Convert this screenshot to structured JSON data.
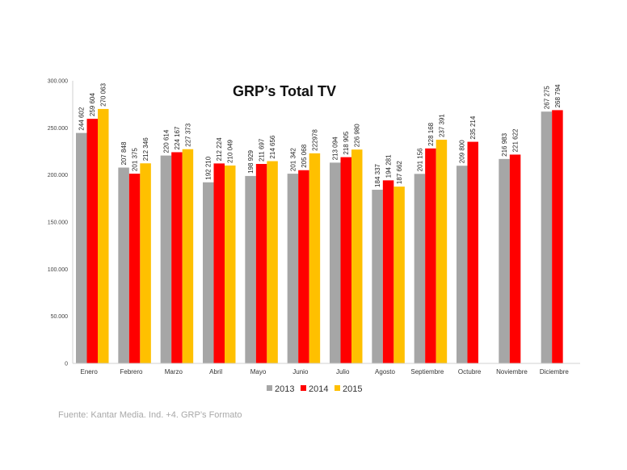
{
  "chart_data": {
    "type": "bar",
    "title": "GRP’s Total TV",
    "xlabel": "",
    "ylabel": "",
    "ylim": [
      0,
      300000
    ],
    "yticks": [
      0,
      50000,
      100000,
      150000,
      200000,
      250000,
      300000
    ],
    "ytick_labels": [
      "0",
      "50.000",
      "100.000",
      "150.000",
      "200.000",
      "250.000",
      "300.000"
    ],
    "grid": false,
    "legend_position": "bottom-center",
    "categories": [
      "Enero",
      "Febrero",
      "Marzo",
      "Abril",
      "Mayo",
      "Junio",
      "Julio",
      "Agosto",
      "Septiembre",
      "Octubre",
      "Noviembre",
      "Diciembre"
    ],
    "series": [
      {
        "name": "2013",
        "color": "#a6a6a6",
        "values": [
          244602,
          207848,
          220614,
          192210,
          198929,
          201342,
          213094,
          184337,
          201156,
          209800,
          216983,
          267275
        ],
        "labels": [
          "244 602",
          "207 848",
          "220 614",
          "192 210",
          "198 929",
          "201 342",
          "213 094",
          "184 337",
          "201 156",
          "209 800",
          "216 983",
          "267 275"
        ]
      },
      {
        "name": "2014",
        "color": "#ff0000",
        "values": [
          259604,
          201375,
          224167,
          212224,
          211697,
          205068,
          218905,
          194281,
          228168,
          235214,
          221622,
          268794
        ],
        "labels": [
          "259 604",
          "201 375",
          "224 167",
          "212 224",
          "211 697",
          "205 068",
          "218 905",
          "194 281",
          "228 168",
          "235 214",
          "221 622",
          "268 794"
        ]
      },
      {
        "name": "2015",
        "color": "#ffc000",
        "values": [
          270063,
          212346,
          227373,
          210049,
          214656,
          222978,
          226980,
          187662,
          237391,
          null,
          null,
          null
        ],
        "labels": [
          "270 063",
          "212 346",
          "227 373",
          "210 049",
          "214 656",
          "222978",
          "226 980",
          "187 662",
          "237 391",
          null,
          null,
          null
        ]
      }
    ]
  },
  "footer": {
    "source": "Fuente: Kantar Media. Ind. +4. GRP’s Formato"
  }
}
